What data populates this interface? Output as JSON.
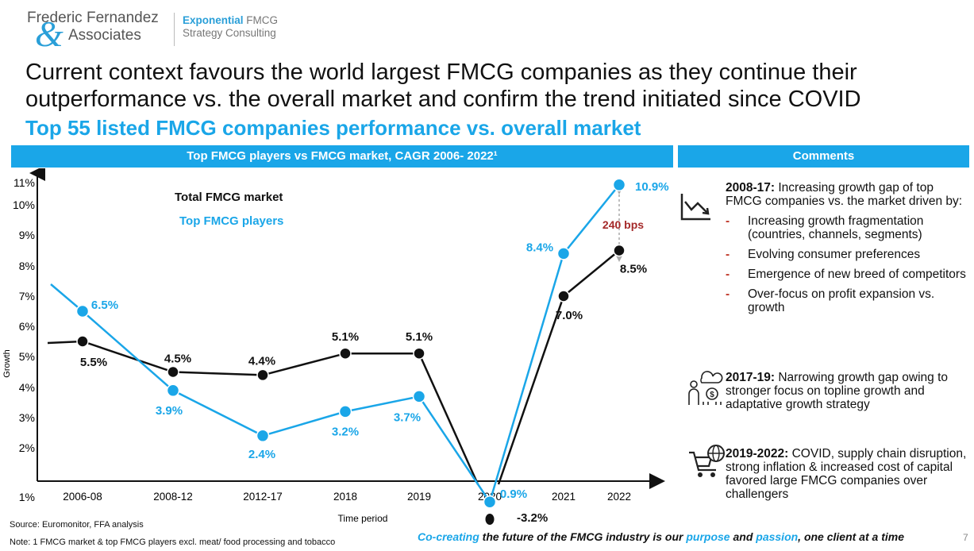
{
  "logo": {
    "name_line1": "Frederic Fernandez",
    "amp": "&",
    "name_line2": "Associates",
    "tagline_accent": "Exponential",
    "tagline_rest": " FMCG",
    "tagline_line2": "Strategy Consulting"
  },
  "headline": "Current context favours the world largest FMCG companies as they continue their outperformance vs. the overall market and confirm the trend initiated since COVID",
  "subheadline": "Top 55 listed FMCG companies performance vs. overall market",
  "chart_header": "Top FMCG players vs FMCG market, CAGR 2006- 2022¹",
  "comments_header": "Comments",
  "chart_data": {
    "type": "line",
    "title": "Top FMCG players vs FMCG market, CAGR 2006- 2022¹",
    "xlabel": "Time period",
    "ylabel": "Growth",
    "categories": [
      "2006-08",
      "2008-12",
      "2012-17",
      "2018",
      "2019",
      "2020",
      "2021",
      "2022"
    ],
    "y_ticks": [
      "11%",
      "10%",
      "9%",
      "8%",
      "7%",
      "6%",
      "5%",
      "4%",
      "3%",
      "2%",
      "1%"
    ],
    "legend": "top-left",
    "grid": false,
    "colors": {
      "market": "#111111",
      "top_players": "#1aa6e8"
    },
    "series": [
      {
        "name": "Total FMCG market",
        "values": [
          5.5,
          4.5,
          4.4,
          5.1,
          5.1,
          -3.2,
          7.0,
          8.5
        ],
        "labels": [
          "5.5%",
          "4.5%",
          "4.4%",
          "5.1%",
          "5.1%",
          "-3.2%",
          "7.0%",
          "8.5%"
        ]
      },
      {
        "name": "Top FMCG players",
        "values": [
          6.5,
          3.9,
          2.4,
          3.2,
          3.7,
          0.9,
          8.4,
          10.9
        ],
        "labels": [
          "6.5%",
          "3.9%",
          "2.4%",
          "3.2%",
          "3.7%",
          "0.9%",
          "8.4%",
          "10.9%"
        ]
      }
    ],
    "annotation": "240 bps"
  },
  "comments": [
    {
      "icon": "trend-down-icon",
      "title": "2008-17:",
      "text": " Increasing growth gap of top FMCG companies vs. the market driven by:",
      "bullets": [
        "Increasing growth fragmentation (countries, channels, segments)",
        "Evolving consumer preferences",
        "Emergence of new breed of competitors",
        "Over-focus on profit expansion vs. growth"
      ]
    },
    {
      "icon": "investor-growth-icon",
      "title": "2017-19:",
      "text": " Narrowing growth gap owing to stronger focus on topline growth and adaptative growth strategy"
    },
    {
      "icon": "global-cart-icon",
      "title": "2019-2022:",
      "text": " COVID, supply chain disruption, strong inflation & increased cost of capital favored large FMCG companies over challengers"
    }
  ],
  "source": "Source: Euromonitor, FFA analysis",
  "note": "Note: 1 FMCG market & top FMCG players excl. meat/ food processing and tobacco",
  "footer": {
    "p1": "Co-creating",
    "p2": " the future of the FMCG industry is our ",
    "p3": "purpose",
    "p4": " and ",
    "p5": "passion",
    "p6": ", one client at a time"
  },
  "page_number": "7"
}
